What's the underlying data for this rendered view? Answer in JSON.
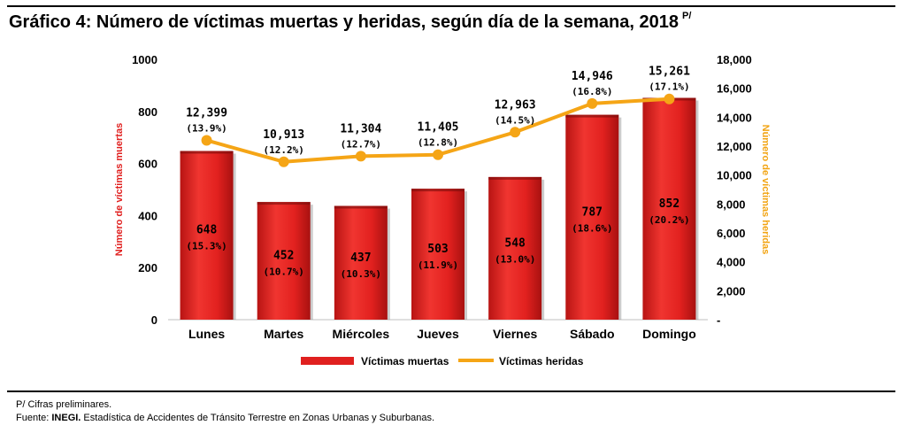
{
  "header": {
    "title": "Gráfico 4: Número de víctimas muertas y heridas, según día de la semana, 2018",
    "title_sup": "P/"
  },
  "footer": {
    "note": "P/ Cifras preliminares.",
    "source_prefix": "Fuente: ",
    "source_org": "INEGI.",
    "source_text": " Estadística de Accidentes de Tránsito Terrestre en Zonas Urbanas y Suburbanas."
  },
  "chart_data": {
    "type": "bar",
    "categories": [
      "Lunes",
      "Martes",
      "Miércoles",
      "Jueves",
      "Viernes",
      "Sábado",
      "Domingo"
    ],
    "series": [
      {
        "name": "Víctimas muertas",
        "kind": "bar",
        "axis": "left",
        "color": "#e0201f",
        "values": [
          648,
          452,
          437,
          503,
          548,
          787,
          852
        ],
        "value_labels": [
          "648",
          "452",
          "437",
          "503",
          "548",
          "787",
          "852"
        ],
        "pct_labels": [
          "(15.3%)",
          "(10.7%)",
          "(10.3%)",
          "(11.9%)",
          "(13.0%)",
          "(18.6%)",
          "(20.2%)"
        ]
      },
      {
        "name": "Víctimas heridas",
        "kind": "line",
        "axis": "right",
        "color": "#f5a516",
        "values": [
          12399,
          10913,
          11304,
          11405,
          12963,
          14946,
          15261
        ],
        "value_labels": [
          "12,399",
          "10,913",
          "11,304",
          "11,405",
          "12,963",
          "14,946",
          "15,261"
        ],
        "pct_labels": [
          "(13.9%)",
          "(12.2%)",
          "(12.7%)",
          "(12.8%)",
          "(14.5%)",
          "(16.8%)",
          "(17.1%)"
        ]
      }
    ],
    "ylabel": "Número de víctimas muertas",
    "y2label": "Número de víctimas heridas",
    "ylim": [
      0,
      1000
    ],
    "y2lim": [
      0,
      18000
    ],
    "yticks": [
      0,
      200,
      400,
      600,
      800,
      1000
    ],
    "ytick_labels": [
      "0",
      "200",
      "400",
      "600",
      "800",
      "1000"
    ],
    "y2ticks": [
      0,
      2000,
      4000,
      6000,
      8000,
      10000,
      12000,
      14000,
      16000,
      18000
    ],
    "y2tick_labels": [
      "-",
      "2,000",
      "4,000",
      "6,000",
      "8,000",
      "10,000",
      "12,000",
      "14,000",
      "16,000",
      "18,000"
    ],
    "legend_position": "bottom-center",
    "grid": false
  }
}
